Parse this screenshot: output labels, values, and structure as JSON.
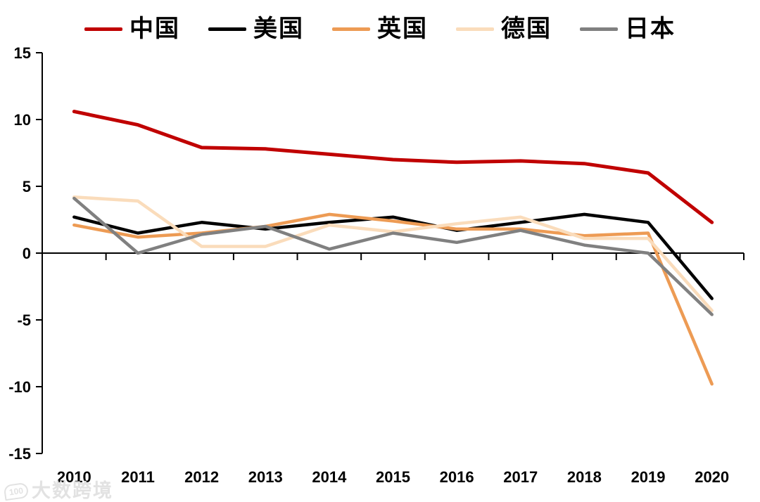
{
  "chart_data": {
    "type": "line",
    "title": "",
    "xlabel": "",
    "ylabel": "",
    "categories": [
      "2010",
      "2011",
      "2012",
      "2013",
      "2014",
      "2015",
      "2016",
      "2017",
      "2018",
      "2019",
      "2020"
    ],
    "series": [
      {
        "id": "china",
        "label": "中国",
        "color": "#C00000",
        "stroke_width": 5,
        "values": [
          10.6,
          9.6,
          7.9,
          7.8,
          7.4,
          7.0,
          6.8,
          6.9,
          6.7,
          6.0,
          2.3
        ]
      },
      {
        "id": "usa",
        "label": "美国",
        "color": "#000000",
        "stroke_width": 4.5,
        "values": [
          2.7,
          1.5,
          2.3,
          1.8,
          2.3,
          2.7,
          1.7,
          2.3,
          2.9,
          2.3,
          -3.4
        ]
      },
      {
        "id": "uk",
        "label": "英国",
        "color": "#ED9B54",
        "stroke_width": 4.5,
        "values": [
          2.1,
          1.2,
          1.5,
          2.0,
          2.9,
          2.4,
          1.8,
          1.8,
          1.3,
          1.5,
          -9.8
        ]
      },
      {
        "id": "germany",
        "label": "德国",
        "color": "#FADCBB",
        "stroke_width": 4.5,
        "values": [
          4.2,
          3.9,
          0.5,
          0.5,
          2.1,
          1.6,
          2.2,
          2.7,
          1.1,
          1.1,
          -4.3
        ]
      },
      {
        "id": "japan",
        "label": "日本",
        "color": "#808080",
        "stroke_width": 4.5,
        "values": [
          4.1,
          0.0,
          1.4,
          2.0,
          0.3,
          1.5,
          0.8,
          1.7,
          0.6,
          0.0,
          -4.6
        ]
      }
    ],
    "ylim": [
      -15,
      15
    ],
    "yticks": [
      15,
      10,
      5,
      0,
      -5,
      -10,
      -15
    ],
    "x_axis_position": "zero-line-labels-low",
    "grid": false,
    "legend_position": "top",
    "axis_color": "#000000"
  },
  "watermark": {
    "logo": "100",
    "text": "大数跨境"
  }
}
